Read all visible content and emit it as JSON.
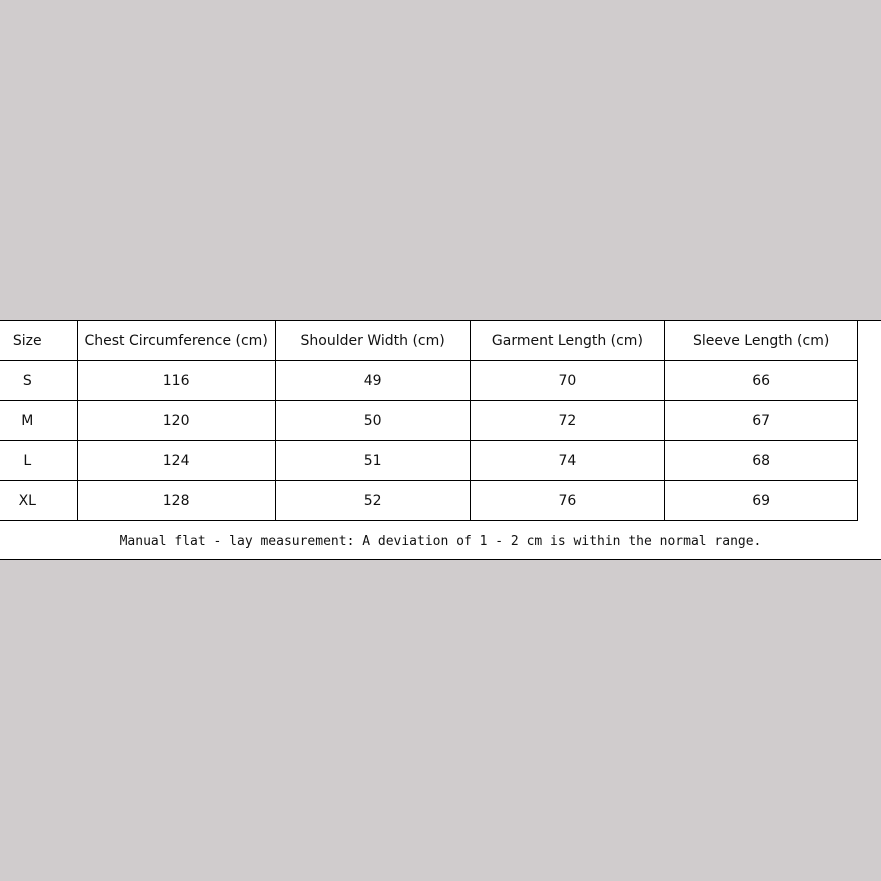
{
  "table": {
    "headers": [
      "Size",
      "Chest Circumference (cm)",
      "Shoulder Width (cm)",
      "Garment Length (cm)",
      "Sleeve Length (cm)"
    ],
    "rows": [
      [
        "S",
        "116",
        "49",
        "70",
        "66"
      ],
      [
        "M",
        "120",
        "50",
        "72",
        "67"
      ],
      [
        "L",
        "124",
        "51",
        "74",
        "68"
      ],
      [
        "XL",
        "128",
        "52",
        "76",
        "69"
      ]
    ],
    "note": "Manual flat - lay measurement: A deviation of 1 - 2 cm is within the normal range."
  }
}
